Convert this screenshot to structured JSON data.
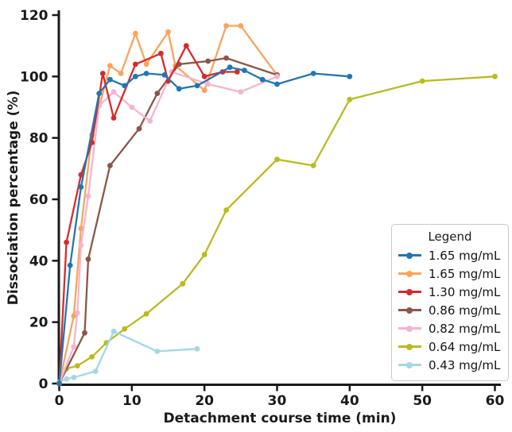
{
  "chart_data": {
    "type": "line",
    "title": "",
    "xlabel": "Detachment course time (min)",
    "ylabel": "Dissociation percentage (%)",
    "xlim": [
      0,
      60
    ],
    "ylim": [
      0,
      120
    ],
    "x_ticks": [
      0,
      10,
      20,
      30,
      40,
      50,
      60
    ],
    "y_ticks": [
      0,
      20,
      40,
      60,
      80,
      100,
      120
    ],
    "grid": false,
    "legend_title": "Legend",
    "legend_position": "right",
    "axis_color": "#1a1a1a",
    "series": [
      {
        "name": "1.65 mg/mL",
        "color": "#1f77b4",
        "marker": "circle",
        "points": [
          [
            0,
            0
          ],
          [
            1.5,
            38.5
          ],
          [
            3,
            64
          ],
          [
            5.5,
            94.5
          ],
          [
            7,
            99
          ],
          [
            9,
            97
          ],
          [
            10.5,
            100
          ],
          [
            12,
            101
          ],
          [
            14.5,
            100.5
          ],
          [
            16.5,
            96
          ],
          [
            19,
            97
          ],
          [
            23.5,
            103
          ],
          [
            25.5,
            102
          ],
          [
            28,
            99
          ],
          [
            30,
            97.5
          ],
          [
            35,
            101
          ],
          [
            40,
            100
          ]
        ]
      },
      {
        "name": "1.65 mg/mL",
        "color": "#f9a45c",
        "marker": "circle",
        "points": [
          [
            0,
            0
          ],
          [
            2,
            22
          ],
          [
            3,
            50.5
          ],
          [
            4.5,
            81
          ],
          [
            7,
            103.5
          ],
          [
            8.5,
            101
          ],
          [
            10.5,
            114
          ],
          [
            12,
            104
          ],
          [
            15,
            114.5
          ],
          [
            16,
            103.5
          ],
          [
            20,
            95.5
          ],
          [
            23,
            116.5
          ],
          [
            25,
            116.5
          ],
          [
            30,
            100.5
          ]
        ]
      },
      {
        "name": "1.30 mg/mL",
        "color": "#d62b2b",
        "marker": "circle",
        "points": [
          [
            0,
            0
          ],
          [
            1,
            46
          ],
          [
            3,
            68
          ],
          [
            4.5,
            78.5
          ],
          [
            6,
            101
          ],
          [
            7.5,
            86.5
          ],
          [
            10.5,
            104
          ],
          [
            14,
            107.5
          ],
          [
            15,
            98.5
          ],
          [
            17.5,
            110
          ],
          [
            20,
            100
          ],
          [
            22.5,
            101.5
          ],
          [
            24.5,
            101.5
          ]
        ]
      },
      {
        "name": "0.86 mg/mL",
        "color": "#8c564b",
        "marker": "circle",
        "points": [
          [
            0,
            0
          ],
          [
            3.5,
            16.5
          ],
          [
            4,
            40.5
          ],
          [
            7,
            71
          ],
          [
            11,
            83
          ],
          [
            13.5,
            94.5
          ],
          [
            16.5,
            104
          ],
          [
            20.5,
            105
          ],
          [
            23,
            106
          ],
          [
            30,
            100.5
          ]
        ]
      },
      {
        "name": "0.82 mg/mL",
        "color": "#f4b4d0",
        "marker": "circle",
        "points": [
          [
            0,
            0
          ],
          [
            2,
            12
          ],
          [
            2.5,
            23
          ],
          [
            3,
            45
          ],
          [
            4,
            61
          ],
          [
            5.5,
            90.5
          ],
          [
            7.5,
            95
          ],
          [
            10,
            90
          ],
          [
            12.5,
            85.5
          ],
          [
            15.5,
            101.5
          ],
          [
            20.5,
            97.5
          ],
          [
            25,
            95
          ],
          [
            30,
            100
          ]
        ]
      },
      {
        "name": "0.64 mg/mL",
        "color": "#b9bb1f",
        "marker": "circle",
        "points": [
          [
            0,
            0.5
          ],
          [
            1,
            4.8
          ],
          [
            2.5,
            5.8
          ],
          [
            4.5,
            8.7
          ],
          [
            6.5,
            13.3
          ],
          [
            9,
            17.8
          ],
          [
            12,
            22.7
          ],
          [
            17,
            32.5
          ],
          [
            20,
            42
          ],
          [
            23,
            56.5
          ],
          [
            30,
            73
          ],
          [
            35,
            71
          ],
          [
            40,
            92.5
          ],
          [
            50,
            98.5
          ],
          [
            60,
            100
          ]
        ]
      },
      {
        "name": "0.43 mg/mL",
        "color": "#a3d7e5",
        "marker": "circle",
        "points": [
          [
            0,
            0.5
          ],
          [
            1,
            1.5
          ],
          [
            2,
            2
          ],
          [
            5,
            4
          ],
          [
            7.5,
            17
          ],
          [
            13.5,
            10.5
          ],
          [
            19,
            11.3
          ]
        ]
      }
    ],
    "draw_order": [
      5,
      6,
      1,
      3,
      4,
      2,
      0
    ]
  }
}
